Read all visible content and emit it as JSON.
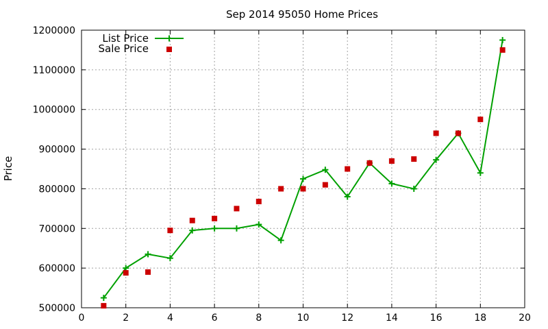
{
  "chart_data": {
    "type": "line",
    "title": "Sep 2014 95050 Home Prices",
    "xlabel": "",
    "ylabel": "Price",
    "xlim": [
      0,
      20
    ],
    "ylim": [
      500000,
      1200000
    ],
    "x_ticks": [
      0,
      2,
      4,
      6,
      8,
      10,
      12,
      14,
      16,
      18,
      20
    ],
    "y_ticks": [
      500000,
      600000,
      700000,
      800000,
      900000,
      1000000,
      1100000,
      1200000
    ],
    "grid": true,
    "legend_position": "top-left",
    "series": [
      {
        "name": "List Price",
        "style": "line-with-plus-markers",
        "color": "#00a000",
        "x": [
          1,
          2,
          3,
          4,
          5,
          6,
          7,
          8,
          9,
          10,
          11,
          12,
          13,
          14,
          15,
          16,
          17,
          18,
          19
        ],
        "y": [
          525000,
          600000,
          635000,
          625000,
          695000,
          700000,
          700000,
          710000,
          670000,
          825000,
          848000,
          780000,
          865000,
          813000,
          800000,
          873000,
          940000,
          840000,
          1175000
        ]
      },
      {
        "name": "Sale Price",
        "style": "square-markers",
        "color": "#cc0000",
        "x": [
          1,
          2,
          3,
          4,
          5,
          6,
          7,
          8,
          9,
          10,
          11,
          12,
          13,
          14,
          15,
          16,
          17,
          18,
          19
        ],
        "y": [
          505000,
          588000,
          590000,
          695000,
          720000,
          725000,
          750000,
          768000,
          800000,
          800000,
          810000,
          850000,
          865000,
          870000,
          875000,
          940000,
          940000,
          975000,
          1150000
        ]
      }
    ]
  }
}
